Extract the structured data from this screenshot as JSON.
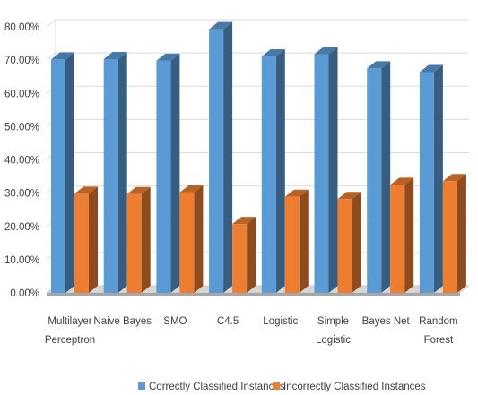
{
  "chart_data": {
    "type": "bar",
    "style": "3d-clustered-column",
    "categories": [
      [
        "Multilayer",
        "Perceptron"
      ],
      [
        "Naive Bayes"
      ],
      [
        "SMO"
      ],
      [
        "C4.5"
      ],
      [
        "Logistic"
      ],
      [
        "Simple",
        "Logistic"
      ],
      [
        "Bayes Net"
      ],
      [
        "Random",
        "Forest"
      ]
    ],
    "series": [
      {
        "name": "Correctly Classified Instances",
        "color": "#5B9BD5",
        "values": [
          70.2,
          70.3,
          69.8,
          79.3,
          71.1,
          71.8,
          67.5,
          66.4
        ]
      },
      {
        "name": "Incorrectly Classified Instances",
        "color": "#ED7D31",
        "values": [
          29.8,
          29.7,
          30.2,
          20.7,
          28.9,
          28.2,
          32.5,
          33.6
        ]
      }
    ],
    "y_ticks": [
      "0.00%",
      "10.00%",
      "20.00%",
      "30.00%",
      "40.00%",
      "50.00%",
      "60.00%",
      "70.00%",
      "80.00%"
    ],
    "ylim": [
      0,
      80
    ],
    "grid": true,
    "legend_position": "bottom"
  }
}
